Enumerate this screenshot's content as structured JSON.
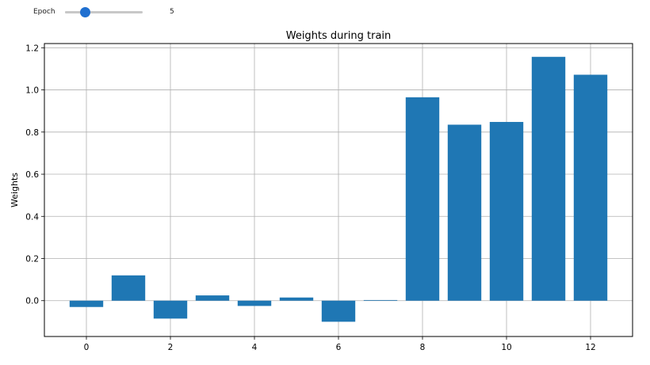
{
  "widget": {
    "label": "Epoch",
    "value": "5",
    "min": 0,
    "max": 20,
    "current": 5,
    "thumb_color": "#1f6fd0"
  },
  "chart_data": {
    "type": "bar",
    "title": "Weights during train",
    "xlabel": "",
    "ylabel": "Weights",
    "categories": [
      0,
      1,
      2,
      3,
      4,
      5,
      6,
      7,
      8,
      9,
      10,
      11,
      12
    ],
    "values": [
      -0.03,
      0.12,
      -0.085,
      0.025,
      -0.025,
      0.015,
      -0.1,
      0.003,
      0.965,
      0.835,
      0.848,
      1.157,
      1.072
    ],
    "xlim": [
      -1,
      13
    ],
    "ylim": [
      -0.17,
      1.22
    ],
    "xticks": [
      0,
      2,
      4,
      6,
      8,
      10,
      12
    ],
    "yticks": [
      0.0,
      0.2,
      0.4,
      0.6,
      0.8,
      1.0,
      1.2
    ],
    "ytick_labels": [
      "0.0",
      "0.2",
      "0.4",
      "0.6",
      "0.8",
      "1.0",
      "1.2"
    ],
    "grid": true,
    "bar_color": "#1f77b4"
  }
}
